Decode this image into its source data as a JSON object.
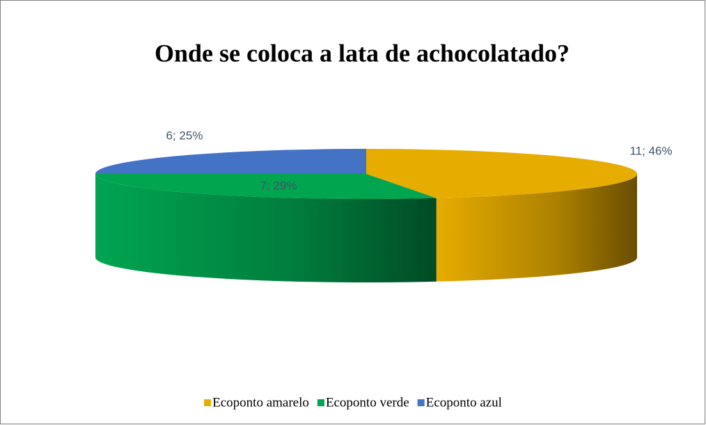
{
  "chart_data": {
    "type": "pie3d",
    "title": "Onde se coloca a lata de achocolatado?",
    "categories": [
      "Ecoponto amarelo",
      "Ecoponto verde",
      "Ecoponto azul"
    ],
    "values": [
      11,
      7,
      6
    ],
    "value_labels": [
      "11; 46%",
      "7; 29%",
      "6; 25%"
    ],
    "colors": [
      "#e6ac00",
      "#00a550",
      "#4472c4"
    ],
    "legend": "bottom"
  }
}
